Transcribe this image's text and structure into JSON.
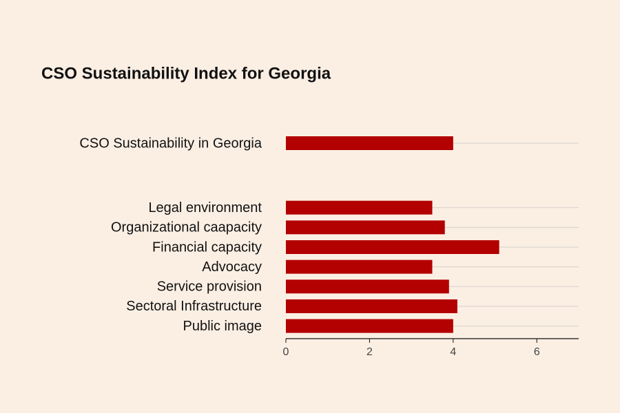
{
  "chart_data": {
    "type": "bar",
    "orientation": "horizontal",
    "title": "CSO Sustainability Index for Georgia",
    "categories": [
      "CSO Sustainability in Georgia",
      null,
      "Legal environment",
      "Organizational caapacity",
      "Financial capacity",
      "Advocacy",
      "Service provision",
      "Sectoral Infrastructure",
      "Public image"
    ],
    "values": [
      4.0,
      null,
      3.5,
      3.8,
      5.1,
      3.5,
      3.9,
      4.1,
      4.0
    ],
    "color": "#b30000",
    "xlim": [
      0,
      7
    ],
    "xticks": [
      0,
      2,
      4,
      6
    ],
    "grid": true
  }
}
